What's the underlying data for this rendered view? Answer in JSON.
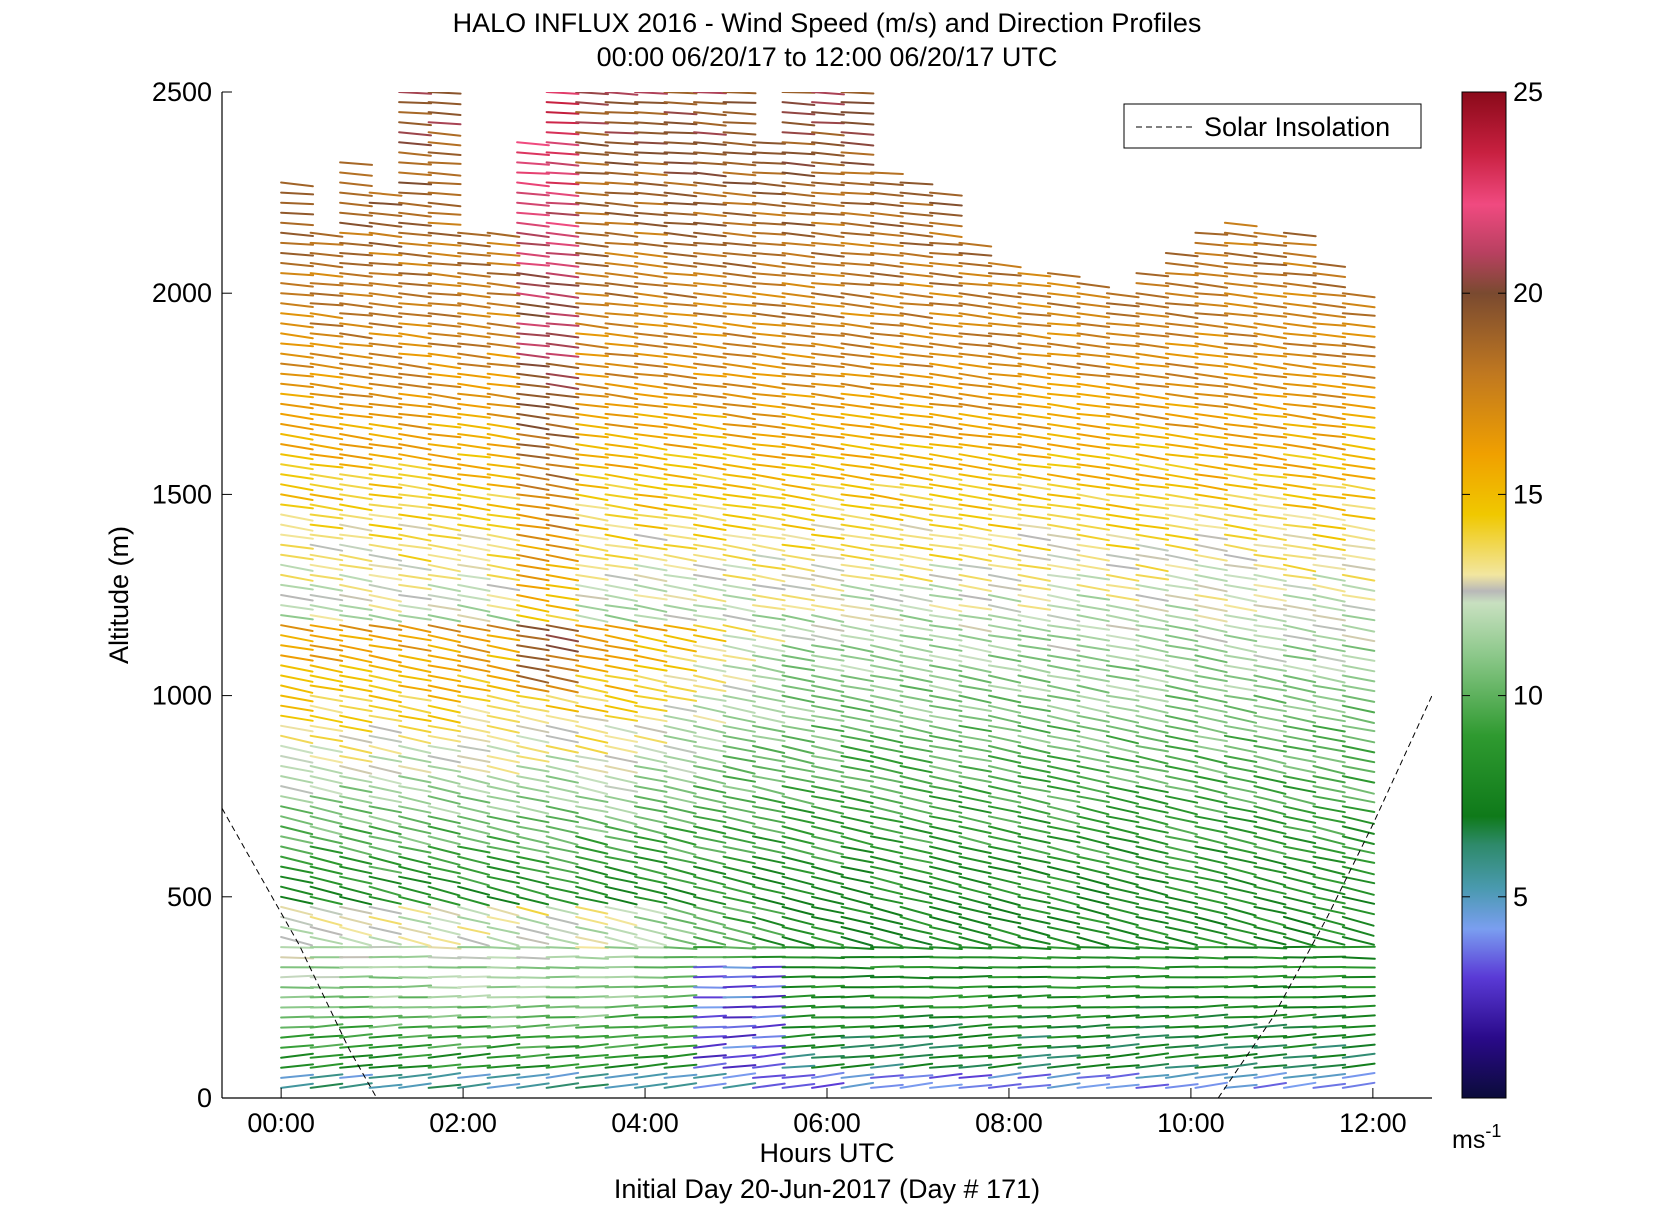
{
  "chart_data": {
    "type": "wind-barb-profile",
    "title": "HALO INFLUX 2016 - Wind Speed (m/s) and Direction Profiles",
    "subtitle": "00:00 06/20/17 to 12:00 06/20/17  UTC",
    "xlabel": "Hours UTC",
    "xlabel2": "Initial Day 20-Jun-2017 (Day # 171)",
    "ylabel": "Altitude (m)",
    "xlim": [
      -0.65,
      12.65
    ],
    "ylim": [
      0,
      2500
    ],
    "xticks": [
      0,
      2,
      4,
      6,
      8,
      10,
      12
    ],
    "xtick_labels": [
      "00:00",
      "02:00",
      "04:00",
      "06:00",
      "08:00",
      "10:00",
      "12:00"
    ],
    "yticks": [
      0,
      500,
      1000,
      1500,
      2000,
      2500
    ],
    "ytick_labels": [
      "0",
      "500",
      "1000",
      "1500",
      "2000",
      "2500"
    ],
    "legend": {
      "label": "Solar Insolation",
      "placement": "top-right",
      "style": "dashed",
      "color": "#000000"
    },
    "solar_insolation": [
      [
        {
          "x": -0.65,
          "y": 720
        },
        {
          "x": 0.2,
          "y": 380
        },
        {
          "x": 0.75,
          "y": 120
        },
        {
          "x": 1.05,
          "y": 0
        }
      ],
      [
        {
          "x": 10.3,
          "y": 0
        },
        {
          "x": 10.9,
          "y": 200
        },
        {
          "x": 11.5,
          "y": 450
        },
        {
          "x": 12.0,
          "y": 680
        },
        {
          "x": 12.65,
          "y": 1000
        }
      ]
    ],
    "profiles": {
      "time_start": 0,
      "time_end": 11.67,
      "n_profiles": 37,
      "alt_step_m": 25,
      "alt_min_m": 25,
      "alt_top_m": [
        2290,
        2150,
        2330,
        2270,
        2500,
        2500,
        2170,
        2150,
        2380,
        2500,
        2500,
        2500,
        2500,
        2500,
        2500,
        2500,
        2380,
        2500,
        2500,
        2500,
        2300,
        2280,
        2250,
        2140,
        2080,
        2050,
        2050,
        2040,
        2020,
        2060,
        2120,
        2160,
        2180,
        2150,
        2150,
        2080,
        2000
      ],
      "speed_structure_ms": {
        "surface": 4,
        "low_level_jet_alt_m": 250,
        "low_level_jet": 8,
        "mid": 12,
        "upper": 17,
        "top": 20
      },
      "direction_note": "westerly flow, arrows pointing east, veering slightly with height"
    },
    "colorbar": {
      "label": "ms-1",
      "label_base": "ms",
      "label_sup": "-1",
      "range": [
        0,
        25
      ],
      "ticks": [
        5,
        10,
        15,
        20,
        25
      ],
      "tick_labels": [
        "5",
        "10",
        "15",
        "20",
        "25"
      ],
      "stops": [
        {
          "v": 0,
          "c": "#0b0b3a"
        },
        {
          "v": 1.5,
          "c": "#2a0a8a"
        },
        {
          "v": 3,
          "c": "#5a3ad6"
        },
        {
          "v": 4.2,
          "c": "#7a9ef0"
        },
        {
          "v": 5.2,
          "c": "#4a9ab0"
        },
        {
          "v": 6.3,
          "c": "#2e8a6a"
        },
        {
          "v": 7,
          "c": "#0f7a1a"
        },
        {
          "v": 9,
          "c": "#2f9a30"
        },
        {
          "v": 11,
          "c": "#8cc88a"
        },
        {
          "v": 12.3,
          "c": "#c8e0c0"
        },
        {
          "v": 12.6,
          "c": "#b8b8b8"
        },
        {
          "v": 13,
          "c": "#f2e6a0"
        },
        {
          "v": 14.5,
          "c": "#f0c800"
        },
        {
          "v": 16,
          "c": "#f0a000"
        },
        {
          "v": 18,
          "c": "#c07820"
        },
        {
          "v": 20,
          "c": "#7a4a30"
        },
        {
          "v": 21,
          "c": "#b84060"
        },
        {
          "v": 22.2,
          "c": "#f04a80"
        },
        {
          "v": 23.5,
          "c": "#c82040"
        },
        {
          "v": 25,
          "c": "#8a0a1a"
        }
      ]
    }
  }
}
